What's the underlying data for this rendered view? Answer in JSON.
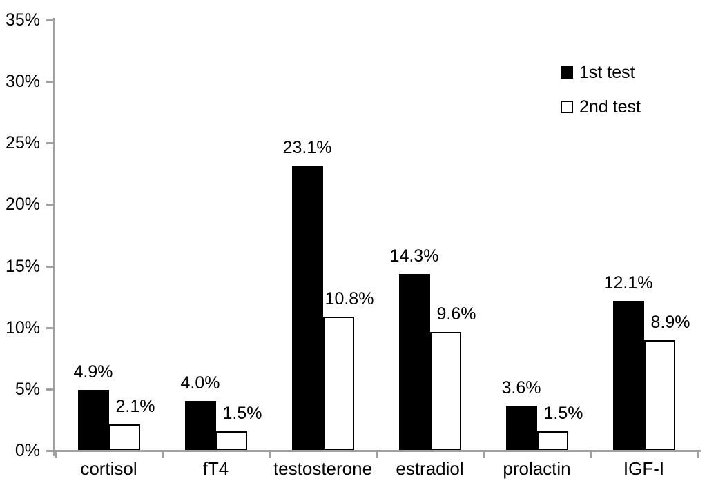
{
  "chart_data": {
    "type": "bar",
    "title": "",
    "categories": [
      "cortisol",
      "fT4",
      "testosterone",
      "estradiol",
      "prolactin",
      "IGF-I"
    ],
    "series": [
      {
        "name": "1st test",
        "fill": "#000000",
        "border": "#000000",
        "values": [
          4.9,
          4.0,
          23.1,
          14.3,
          3.6,
          12.1
        ],
        "labels": [
          "4.9%",
          "4.0%",
          "23.1%",
          "14.3%",
          "3.6%",
          "12.1%"
        ]
      },
      {
        "name": "2nd test",
        "fill": "#ffffff",
        "border": "#000000",
        "values": [
          2.1,
          1.5,
          10.8,
          9.6,
          1.5,
          8.9
        ],
        "labels": [
          "2.1%",
          "1.5%",
          "10.8%",
          "9.6%",
          "1.5%",
          "8.9%"
        ]
      }
    ],
    "y_axis": {
      "min": 0,
      "max": 35,
      "step": 5,
      "tick_labels": [
        "0%",
        "5%",
        "10%",
        "15%",
        "20%",
        "25%",
        "30%",
        "35%"
      ]
    },
    "xlabel": "",
    "ylabel": "",
    "grid": false,
    "legend_position": "top-right",
    "colors": {
      "axis": "#a0a0a0",
      "text": "#000000",
      "background": "#ffffff"
    }
  }
}
